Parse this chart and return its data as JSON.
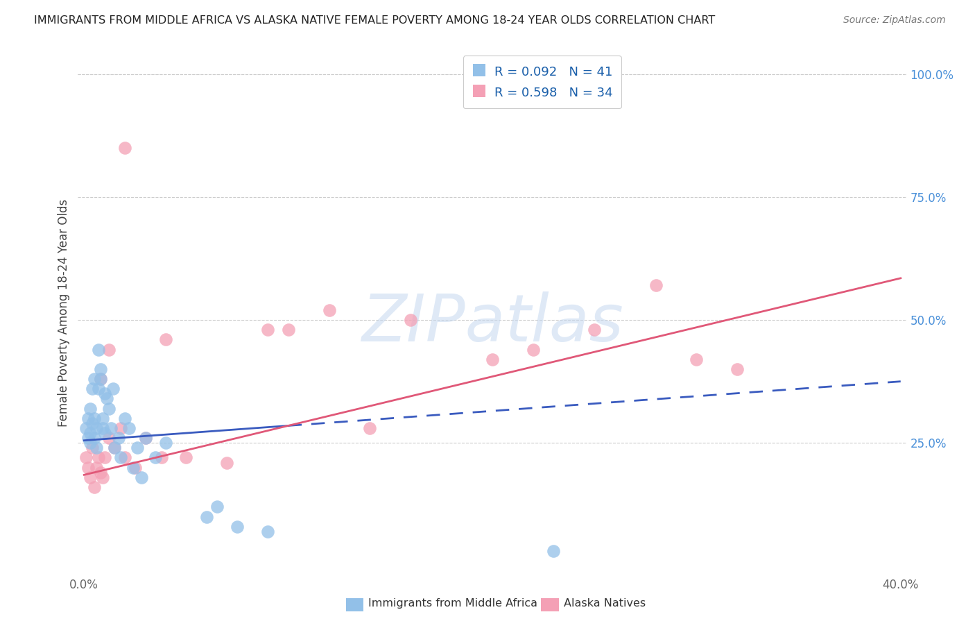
{
  "title": "IMMIGRANTS FROM MIDDLE AFRICA VS ALASKA NATIVE FEMALE POVERTY AMONG 18-24 YEAR OLDS CORRELATION CHART",
  "source": "Source: ZipAtlas.com",
  "ylabel": "Female Poverty Among 18-24 Year Olds",
  "xlim_min": 0.0,
  "xlim_max": 0.4,
  "ylim_min": -0.02,
  "ylim_max": 1.05,
  "xticklabels_left": "0.0%",
  "xticklabels_right": "40.0%",
  "yticklabels": [
    "25.0%",
    "50.0%",
    "75.0%",
    "100.0%"
  ],
  "ytick_vals": [
    0.25,
    0.5,
    0.75,
    1.0
  ],
  "blue_R": "R = 0.092",
  "blue_N": "N = 41",
  "pink_R": "R = 0.598",
  "pink_N": "N = 34",
  "blue_color": "#92c0e8",
  "pink_color": "#f4a0b5",
  "blue_line_color": "#3a5bbf",
  "pink_line_color": "#e05878",
  "blue_line_solid_end": 0.1,
  "blue_line_dash_start": 0.1,
  "blue_line_end": 0.4,
  "watermark": "ZIPatlas",
  "legend_label_blue": "Immigrants from Middle Africa",
  "legend_label_pink": "Alaska Natives",
  "blue_scatter_x": [
    0.001,
    0.002,
    0.002,
    0.003,
    0.003,
    0.003,
    0.004,
    0.004,
    0.005,
    0.005,
    0.005,
    0.006,
    0.006,
    0.007,
    0.007,
    0.008,
    0.008,
    0.009,
    0.009,
    0.01,
    0.01,
    0.011,
    0.012,
    0.013,
    0.014,
    0.015,
    0.017,
    0.018,
    0.02,
    0.022,
    0.024,
    0.026,
    0.028,
    0.03,
    0.035,
    0.04,
    0.06,
    0.065,
    0.075,
    0.09,
    0.23
  ],
  "blue_scatter_y": [
    0.28,
    0.3,
    0.26,
    0.32,
    0.27,
    0.25,
    0.36,
    0.29,
    0.38,
    0.3,
    0.26,
    0.28,
    0.24,
    0.44,
    0.36,
    0.4,
    0.38,
    0.28,
    0.3,
    0.35,
    0.27,
    0.34,
    0.32,
    0.28,
    0.36,
    0.24,
    0.26,
    0.22,
    0.3,
    0.28,
    0.2,
    0.24,
    0.18,
    0.26,
    0.22,
    0.25,
    0.1,
    0.12,
    0.08,
    0.07,
    0.03
  ],
  "pink_scatter_x": [
    0.001,
    0.002,
    0.003,
    0.004,
    0.005,
    0.006,
    0.007,
    0.008,
    0.009,
    0.01,
    0.012,
    0.015,
    0.018,
    0.02,
    0.025,
    0.03,
    0.04,
    0.05,
    0.07,
    0.09,
    0.1,
    0.12,
    0.14,
    0.16,
    0.2,
    0.22,
    0.25,
    0.28,
    0.3,
    0.32,
    0.008,
    0.012,
    0.02,
    0.038
  ],
  "pink_scatter_y": [
    0.22,
    0.2,
    0.18,
    0.24,
    0.16,
    0.2,
    0.22,
    0.19,
    0.18,
    0.22,
    0.26,
    0.24,
    0.28,
    0.22,
    0.2,
    0.26,
    0.46,
    0.22,
    0.21,
    0.48,
    0.48,
    0.52,
    0.28,
    0.5,
    0.42,
    0.44,
    0.48,
    0.57,
    0.42,
    0.4,
    0.38,
    0.44,
    0.85,
    0.22
  ]
}
